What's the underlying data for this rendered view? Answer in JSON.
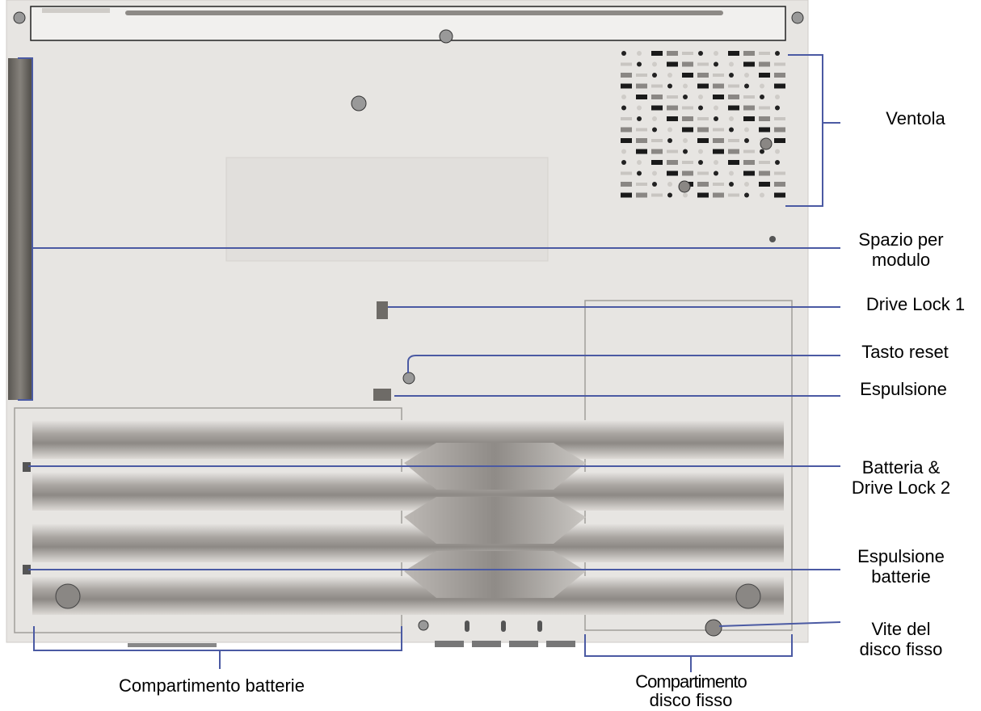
{
  "labels": [
    {
      "lines": [
        "Ventola"
      ]
    },
    {
      "lines": [
        "Spazio per",
        "modulo"
      ]
    },
    {
      "lines": [
        "Drive Lock 1"
      ]
    },
    {
      "lines": [
        "Tasto reset"
      ]
    },
    {
      "lines": [
        "Espulsione"
      ]
    },
    {
      "lines": [
        "Batteria &",
        "Drive Lock 2"
      ]
    },
    {
      "lines": [
        "Espulsione",
        "batterie"
      ]
    },
    {
      "lines": [
        "Vite del",
        "disco fisso"
      ]
    },
    {
      "lines": [
        "Compartimento batterie"
      ]
    },
    {
      "lines": [
        "Compartimento",
        "disco fisso"
      ]
    }
  ]
}
